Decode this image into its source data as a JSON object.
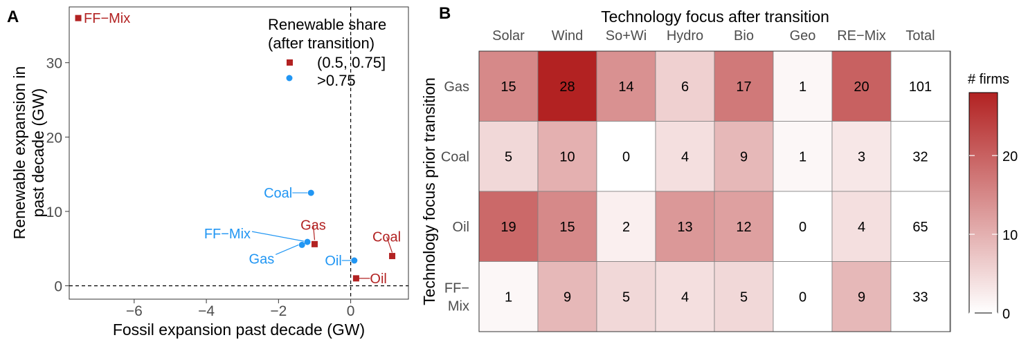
{
  "colors": {
    "red": "#b22222",
    "blue": "#2196f3",
    "heat_low": "#ffffff",
    "heat_high": "#b22222",
    "grid": "#777777",
    "axis_text": "#4d4d4d"
  },
  "panels": {
    "a_label": "A",
    "b_label": "B"
  },
  "chart_data": [
    {
      "type": "scatter",
      "xlabel": "Fossil expansion past decade (GW)",
      "ylabel_line1": "Renewable expansion in",
      "ylabel_line2": "past decade (GW)",
      "xlim": [
        -7.8,
        1.6
      ],
      "ylim": [
        -1.8,
        37.5
      ],
      "x_ticks": [
        -6,
        -4,
        -2,
        0
      ],
      "x_tick_labels": [
        "−6",
        "−4",
        "−2",
        "0"
      ],
      "y_ticks": [
        0,
        10,
        20,
        30
      ],
      "y_tick_labels": [
        "0",
        "10",
        "20",
        "30"
      ],
      "reference_lines": {
        "x": 0,
        "y": 0,
        "style": "dashed"
      },
      "legend": {
        "title_line1": "Renewable share",
        "title_line2": "(after transition)",
        "placement": "top-right",
        "entries": [
          {
            "label": "(0.5, 0.75]",
            "shape": "square",
            "color": "#b22222"
          },
          {
            "label": ">0.75",
            "shape": "circle",
            "color": "#2196f3"
          }
        ]
      },
      "series": [
        {
          "name": "(0.5, 0.75]",
          "shape": "square",
          "color": "#b22222",
          "points": [
            {
              "label": "FF−Mix",
              "x": -7.55,
              "y": 36.0
            },
            {
              "label": "Gas",
              "x": -1.0,
              "y": 5.6
            },
            {
              "label": "Coal",
              "x": 1.15,
              "y": 4.0
            },
            {
              "label": "Oil",
              "x": 0.15,
              "y": 1.0
            }
          ]
        },
        {
          "name": ">0.75",
          "shape": "circle",
          "color": "#2196f3",
          "points": [
            {
              "label": "Coal",
              "x": -1.1,
              "y": 12.5
            },
            {
              "label": "FF−Mix",
              "x": -1.2,
              "y": 5.9
            },
            {
              "label": "Gas",
              "x": -1.35,
              "y": 5.5
            },
            {
              "label": "Oil",
              "x": 0.1,
              "y": 3.4
            }
          ]
        }
      ]
    },
    {
      "type": "heatmap",
      "title": "Technology focus after transition",
      "ylabel": "Technology focus prior transition",
      "columns": [
        "Solar",
        "Wind",
        "So+Wi",
        "Hydro",
        "Bio",
        "Geo",
        "RE−Mix",
        "Total"
      ],
      "rows": [
        {
          "label_lines": [
            "Gas"
          ],
          "values": [
            15,
            28,
            14,
            6,
            17,
            1,
            20
          ],
          "total": 101
        },
        {
          "label_lines": [
            "Coal"
          ],
          "values": [
            5,
            10,
            0,
            4,
            9,
            1,
            3
          ],
          "total": 32
        },
        {
          "label_lines": [
            "Oil"
          ],
          "values": [
            19,
            15,
            2,
            13,
            12,
            0,
            4
          ],
          "total": 65
        },
        {
          "label_lines": [
            "FF−",
            "Mix"
          ],
          "values": [
            1,
            9,
            5,
            4,
            5,
            0,
            9
          ],
          "total": 33
        }
      ],
      "colorbar": {
        "title": "# firms",
        "range": [
          0,
          28
        ],
        "ticks": [
          0,
          10,
          20
        ],
        "tick_labels": [
          "0",
          "10",
          "20"
        ]
      }
    }
  ]
}
